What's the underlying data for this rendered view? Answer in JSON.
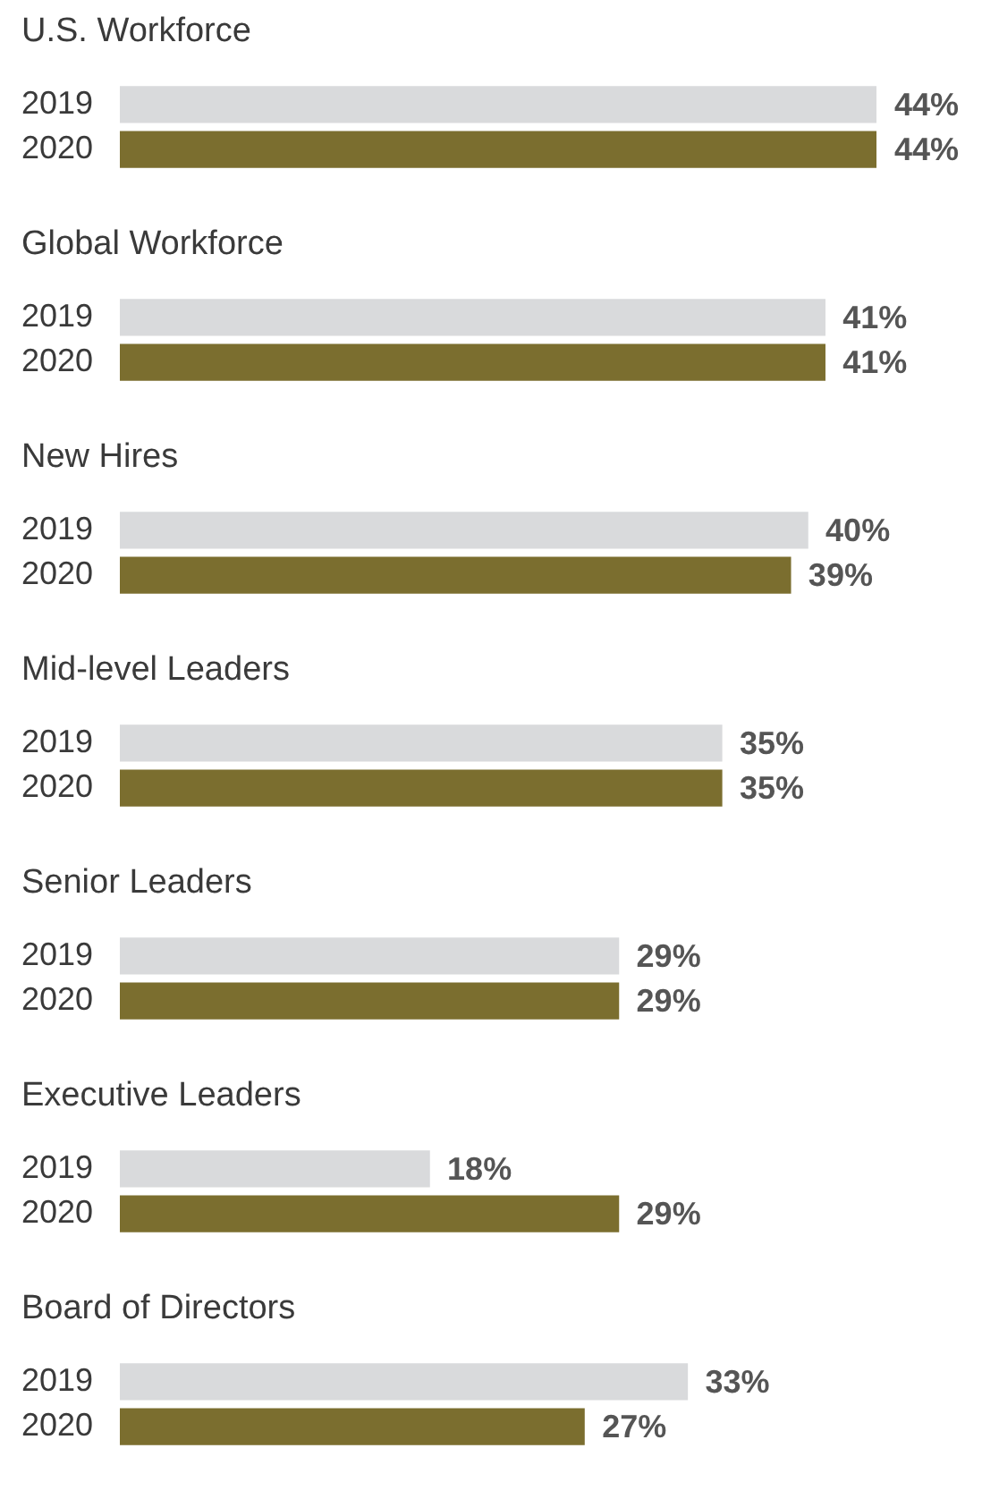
{
  "chart_data": [
    {
      "type": "bar",
      "orientation": "horizontal",
      "title": "U.S. Workforce",
      "categories": [
        "2019",
        "2020"
      ],
      "values": [
        44,
        44
      ],
      "colors": [
        "#d9dadc",
        "#7b6e2f"
      ],
      "value_labels": [
        "44%",
        "44%"
      ],
      "tick_labels": "y",
      "grid": false,
      "legend": false
    },
    {
      "type": "bar",
      "orientation": "horizontal",
      "title": "Global Workforce",
      "categories": [
        "2019",
        "2020"
      ],
      "values": [
        41,
        41
      ],
      "colors": [
        "#d9dadc",
        "#7b6e2f"
      ],
      "value_labels": [
        "41%",
        "41%"
      ],
      "tick_labels": "y",
      "grid": false,
      "legend": false
    },
    {
      "type": "bar",
      "orientation": "horizontal",
      "title": "New Hires",
      "categories": [
        "2019",
        "2020"
      ],
      "values": [
        40,
        39
      ],
      "colors": [
        "#d9dadc",
        "#7b6e2f"
      ],
      "value_labels": [
        "40%",
        "39%"
      ],
      "tick_labels": "y",
      "grid": false,
      "legend": false
    },
    {
      "type": "bar",
      "orientation": "horizontal",
      "title": "Mid-level Leaders",
      "categories": [
        "2019",
        "2020"
      ],
      "values": [
        35,
        35
      ],
      "colors": [
        "#d9dadc",
        "#7b6e2f"
      ],
      "value_labels": [
        "35%",
        "35%"
      ],
      "tick_labels": "y",
      "grid": false,
      "legend": false
    },
    {
      "type": "bar",
      "orientation": "horizontal",
      "title": "Senior Leaders",
      "categories": [
        "2019",
        "2020"
      ],
      "values": [
        29,
        29
      ],
      "colors": [
        "#d9dadc",
        "#7b6e2f"
      ],
      "value_labels": [
        "29%",
        "29%"
      ],
      "tick_labels": "y",
      "grid": false,
      "legend": false
    },
    {
      "type": "bar",
      "orientation": "horizontal",
      "title": "Executive Leaders",
      "categories": [
        "2019",
        "2020"
      ],
      "values": [
        18,
        29
      ],
      "colors": [
        "#d9dadc",
        "#7b6e2f"
      ],
      "value_labels": [
        "18%",
        "29%"
      ],
      "tick_labels": "y",
      "grid": false,
      "legend": false
    },
    {
      "type": "bar",
      "orientation": "horizontal",
      "title": "Board of Directors",
      "categories": [
        "2019",
        "2020"
      ],
      "values": [
        33,
        27
      ],
      "colors": [
        "#d9dadc",
        "#7b6e2f"
      ],
      "value_labels": [
        "33%",
        "27%"
      ],
      "tick_labels": "y",
      "grid": false,
      "legend": false
    }
  ]
}
